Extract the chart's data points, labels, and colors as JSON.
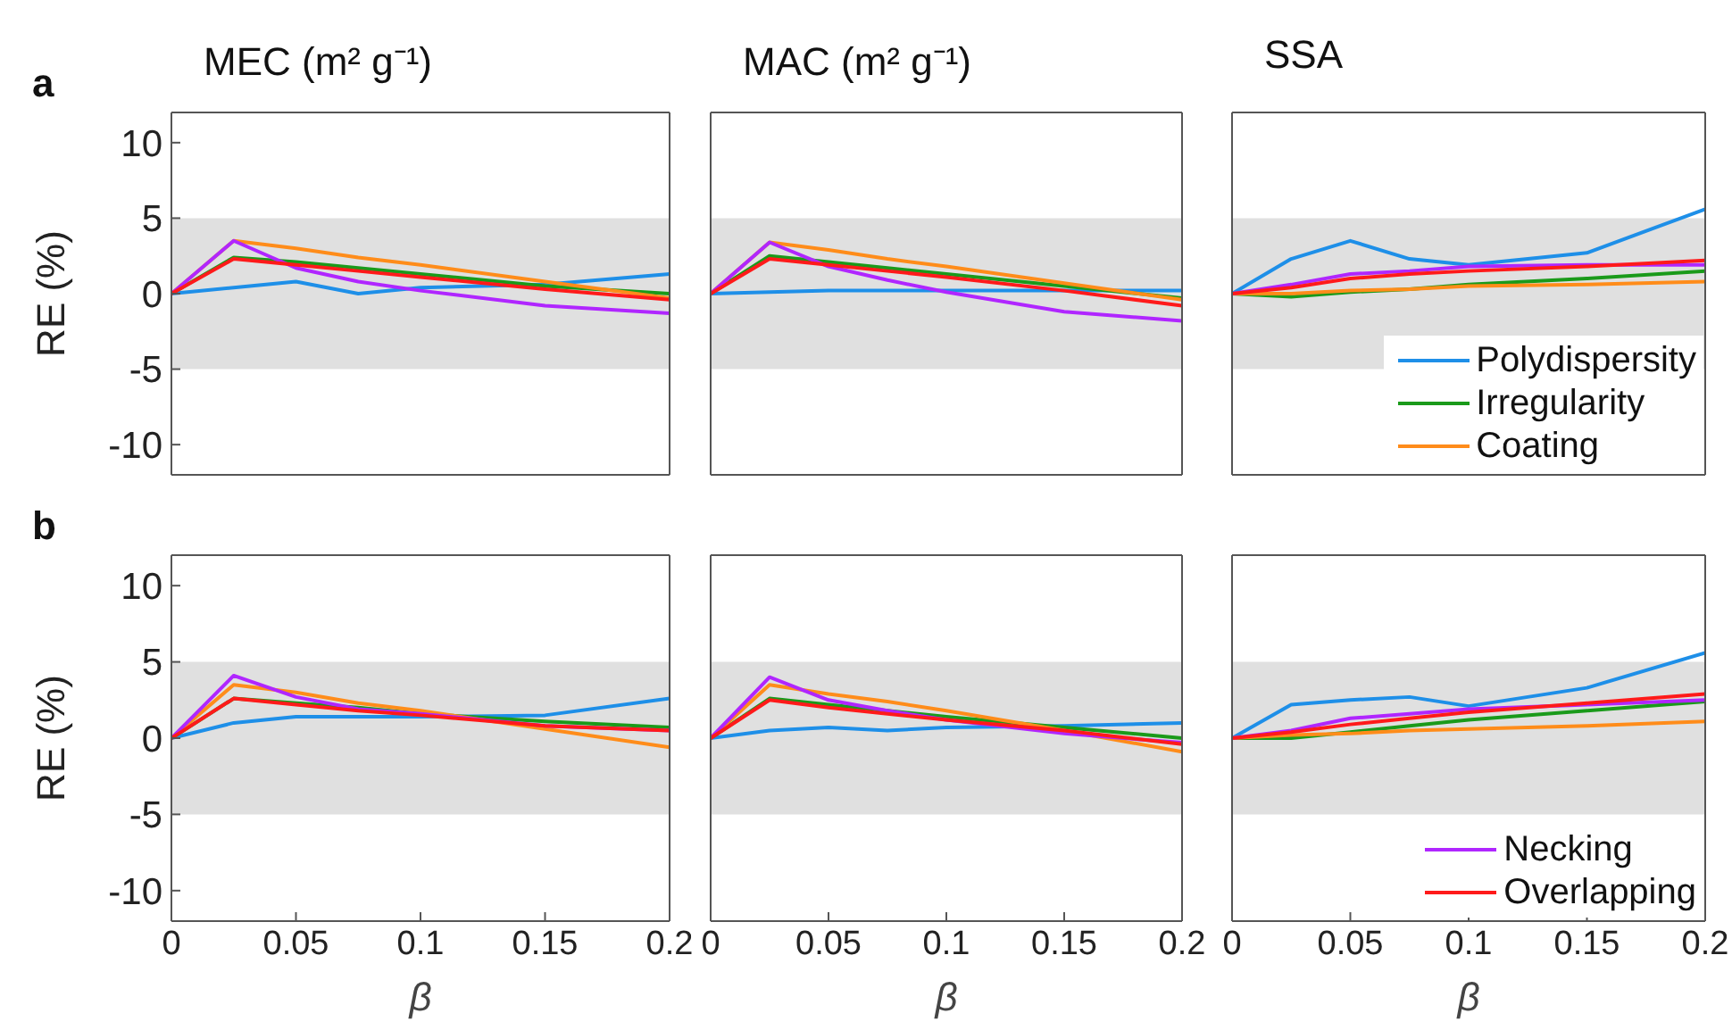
{
  "chart_data": [
    {
      "type": "line",
      "title": "MEC (m² g⁻¹)",
      "ylabel": "RE (%)",
      "annotations": [
        "a"
      ],
      "x": [
        0,
        0.025,
        0.05,
        0.075,
        0.1,
        0.15,
        0.2
      ],
      "xlim": [
        0,
        0.2
      ],
      "xticks": [
        0,
        0.05,
        0.1,
        0.15,
        0.2
      ],
      "ylim": [
        -12,
        12
      ],
      "yticks": [
        -10,
        -5,
        0,
        5,
        10
      ],
      "tick_labels": "y",
      "grid": false,
      "legend": false,
      "line_style": "solid",
      "marker": "none",
      "bands": [
        {
          "axis": "y",
          "from": -5,
          "to": 5,
          "color": "#e0e0e0"
        }
      ],
      "series": [
        {
          "color": "#1e8fe8",
          "values": [
            0,
            0.4,
            0.8,
            0,
            0.4,
            0.6,
            1.3
          ]
        },
        {
          "color": "#1a9a1a",
          "values": [
            0,
            2.4,
            2.1,
            1.7,
            1.3,
            0.5,
            0
          ]
        },
        {
          "color": "#ff8c1a",
          "values": [
            0,
            3.5,
            3.0,
            2.4,
            1.9,
            0.8,
            -0.3
          ]
        },
        {
          "color": "#b026ff",
          "values": [
            0,
            3.5,
            1.7,
            0.8,
            0.2,
            -0.8,
            -1.3
          ]
        },
        {
          "color": "#ff1a1a",
          "values": [
            0,
            2.3,
            1.9,
            1.5,
            1.1,
            0.3,
            -0.4
          ]
        }
      ]
    },
    {
      "type": "line",
      "title": "MAC (m² g⁻¹)",
      "x": [
        0,
        0.025,
        0.05,
        0.075,
        0.1,
        0.15,
        0.2
      ],
      "xlim": [
        0,
        0.2
      ],
      "xticks": [
        0,
        0.05,
        0.1,
        0.15,
        0.2
      ],
      "ylim": [
        -12,
        12
      ],
      "yticks": [
        -10,
        -5,
        0,
        5,
        10
      ],
      "tick_labels": false,
      "grid": false,
      "legend": false,
      "line_style": "solid",
      "marker": "none",
      "bands": [
        {
          "axis": "y",
          "from": -5,
          "to": 5,
          "color": "#e0e0e0"
        }
      ],
      "series": [
        {
          "color": "#1e8fe8",
          "values": [
            0,
            0.1,
            0.2,
            0.2,
            0.2,
            0.2,
            0.2
          ]
        },
        {
          "color": "#1a9a1a",
          "values": [
            0,
            2.5,
            2.1,
            1.7,
            1.3,
            0.5,
            -0.3
          ]
        },
        {
          "color": "#ff8c1a",
          "values": [
            0,
            3.4,
            2.9,
            2.3,
            1.8,
            0.7,
            -0.4
          ]
        },
        {
          "color": "#b026ff",
          "values": [
            0,
            3.4,
            1.8,
            0.9,
            0.1,
            -1.2,
            -1.8
          ]
        },
        {
          "color": "#ff1a1a",
          "values": [
            0,
            2.3,
            1.9,
            1.5,
            1.1,
            0.2,
            -0.8
          ]
        }
      ]
    },
    {
      "type": "line",
      "title": "SSA",
      "x": [
        0,
        0.025,
        0.05,
        0.075,
        0.1,
        0.15,
        0.2
      ],
      "xlim": [
        0,
        0.2
      ],
      "xticks": [
        0,
        0.05,
        0.1,
        0.15,
        0.2
      ],
      "ylim": [
        -12,
        12
      ],
      "yticks": [
        -10,
        -5,
        0,
        5,
        10
      ],
      "tick_labels": false,
      "grid": false,
      "legend": "bottom right",
      "line_style": "solid",
      "marker": "none",
      "bands": [
        {
          "axis": "y",
          "from": -5,
          "to": 5,
          "color": "#e0e0e0"
        }
      ],
      "series": [
        {
          "name": "Polydispersity",
          "color": "#1e8fe8",
          "values": [
            0,
            2.3,
            3.5,
            2.3,
            1.9,
            2.7,
            5.6
          ]
        },
        {
          "name": "Irregularity",
          "color": "#1a9a1a",
          "values": [
            0,
            -0.2,
            0.1,
            0.3,
            0.6,
            1.0,
            1.5
          ]
        },
        {
          "name": "Coating",
          "color": "#ff8c1a",
          "values": [
            0,
            0,
            0.2,
            0.3,
            0.5,
            0.6,
            0.8
          ]
        },
        {
          "color": "#b026ff",
          "values": [
            0,
            0.6,
            1.3,
            1.5,
            1.8,
            1.9,
            1.9
          ]
        },
        {
          "color": "#ff1a1a",
          "values": [
            0,
            0.4,
            1.0,
            1.3,
            1.5,
            1.8,
            2.2
          ]
        }
      ]
    },
    {
      "type": "line",
      "xlabel": "β",
      "ylabel": "RE (%)",
      "annotations": [
        "b"
      ],
      "x": [
        0,
        0.025,
        0.05,
        0.075,
        0.1,
        0.15,
        0.2
      ],
      "xlim": [
        0,
        0.2
      ],
      "xticks": [
        0,
        0.05,
        0.1,
        0.15,
        0.2
      ],
      "ylim": [
        -12,
        12
      ],
      "yticks": [
        -10,
        -5,
        0,
        5,
        10
      ],
      "grid": false,
      "legend": false,
      "line_style": "solid",
      "marker": "none",
      "bands": [
        {
          "axis": "y",
          "from": -5,
          "to": 5,
          "color": "#e0e0e0"
        }
      ],
      "series": [
        {
          "color": "#1e8fe8",
          "values": [
            0,
            1.0,
            1.4,
            1.4,
            1.4,
            1.5,
            2.6
          ]
        },
        {
          "color": "#1a9a1a",
          "values": [
            0,
            2.6,
            2.3,
            2.0,
            1.6,
            1.1,
            0.7
          ]
        },
        {
          "color": "#ff8c1a",
          "values": [
            0,
            3.5,
            3.0,
            2.3,
            1.8,
            0.6,
            -0.6
          ]
        },
        {
          "color": "#b026ff",
          "values": [
            0,
            4.1,
            2.7,
            1.9,
            1.6,
            0.8,
            0.5
          ]
        },
        {
          "color": "#ff1a1a",
          "values": [
            0,
            2.6,
            2.2,
            1.8,
            1.5,
            0.8,
            0.5
          ]
        }
      ]
    },
    {
      "type": "line",
      "xlabel": "β",
      "x": [
        0,
        0.025,
        0.05,
        0.075,
        0.1,
        0.15,
        0.2
      ],
      "xlim": [
        0,
        0.2
      ],
      "xticks": [
        0,
        0.05,
        0.1,
        0.15,
        0.2
      ],
      "ylim": [
        -12,
        12
      ],
      "yticks": [
        -10,
        -5,
        0,
        5,
        10
      ],
      "tick_labels": "x",
      "grid": false,
      "legend": false,
      "line_style": "solid",
      "marker": "none",
      "bands": [
        {
          "axis": "y",
          "from": -5,
          "to": 5,
          "color": "#e0e0e0"
        }
      ],
      "series": [
        {
          "color": "#1e8fe8",
          "values": [
            0,
            0.5,
            0.7,
            0.5,
            0.7,
            0.8,
            1.0
          ]
        },
        {
          "color": "#1a9a1a",
          "values": [
            0,
            2.6,
            2.2,
            1.8,
            1.4,
            0.7,
            0
          ]
        },
        {
          "color": "#ff8c1a",
          "values": [
            0,
            3.5,
            2.9,
            2.4,
            1.8,
            0.5,
            -0.9
          ]
        },
        {
          "color": "#b026ff",
          "values": [
            0,
            4.0,
            2.5,
            1.8,
            1.2,
            0.3,
            -0.3
          ]
        },
        {
          "color": "#ff1a1a",
          "values": [
            0,
            2.5,
            2.0,
            1.6,
            1.2,
            0.5,
            -0.4
          ]
        }
      ]
    },
    {
      "type": "line",
      "xlabel": "β",
      "x": [
        0,
        0.025,
        0.05,
        0.075,
        0.1,
        0.15,
        0.2
      ],
      "xlim": [
        0,
        0.2
      ],
      "xticks": [
        0,
        0.05,
        0.1,
        0.15,
        0.2
      ],
      "ylim": [
        -12,
        12
      ],
      "yticks": [
        -10,
        -5,
        0,
        5,
        10
      ],
      "tick_labels": "x",
      "grid": false,
      "legend": "bottom right",
      "line_style": "solid",
      "marker": "none",
      "bands": [
        {
          "axis": "y",
          "from": -5,
          "to": 5,
          "color": "#e0e0e0"
        }
      ],
      "series": [
        {
          "color": "#1e8fe8",
          "values": [
            0,
            2.2,
            2.5,
            2.7,
            2.1,
            3.3,
            5.6
          ]
        },
        {
          "color": "#1a9a1a",
          "values": [
            0,
            0,
            0.4,
            0.8,
            1.2,
            1.8,
            2.4
          ]
        },
        {
          "color": "#ff8c1a",
          "values": [
            0,
            0.2,
            0.3,
            0.5,
            0.6,
            0.8,
            1.1
          ]
        },
        {
          "name": "Necking",
          "color": "#b026ff",
          "values": [
            0,
            0.5,
            1.3,
            1.6,
            1.9,
            2.2,
            2.5
          ]
        },
        {
          "name": "Overlapping",
          "color": "#ff1a1a",
          "values": [
            0,
            0.4,
            0.9,
            1.3,
            1.7,
            2.3,
            2.9
          ]
        }
      ]
    }
  ]
}
